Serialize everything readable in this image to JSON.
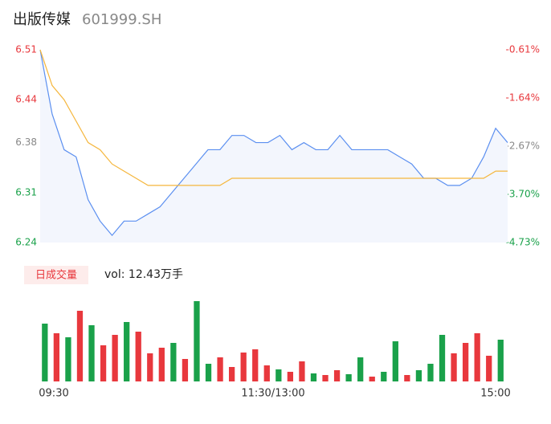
{
  "header": {
    "title": "出版传媒",
    "code": "601999.SH"
  },
  "chart_data": {
    "type": "line",
    "yticks": [
      {
        "value": 6.51,
        "label": "6.51"
      },
      {
        "value": 6.44,
        "label": "6.44"
      },
      {
        "value": 6.38,
        "label": "6.38"
      },
      {
        "value": 6.31,
        "label": "6.31"
      },
      {
        "value": 6.24,
        "label": "6.24"
      }
    ],
    "ylim": [
      6.24,
      6.51
    ],
    "y2ticks": [
      {
        "value": -0.61,
        "label": "-0.61%"
      },
      {
        "value": -1.64,
        "label": "-1.64%"
      },
      {
        "value": -2.67,
        "label": "-2.67%"
      },
      {
        "value": -3.7,
        "label": "-3.70%"
      },
      {
        "value": -4.73,
        "label": "-4.73%"
      }
    ],
    "y2lim": [
      -4.73,
      -0.61
    ],
    "tick_colors": [
      "#e8383d",
      "#e8383d",
      "#888888",
      "#1aa14a",
      "#1aa14a"
    ],
    "x_labels": [
      "09:30",
      "11:30/13:00",
      "15:00"
    ],
    "series": [
      {
        "name": "price",
        "color": "#5b8ff0",
        "values": [
          6.51,
          6.42,
          6.37,
          6.36,
          6.3,
          6.27,
          6.25,
          6.27,
          6.27,
          6.28,
          6.29,
          6.31,
          6.33,
          6.35,
          6.37,
          6.37,
          6.39,
          6.39,
          6.38,
          6.38,
          6.39,
          6.37,
          6.38,
          6.37,
          6.37,
          6.39,
          6.37,
          6.37,
          6.37,
          6.37,
          6.36,
          6.35,
          6.33,
          6.33,
          6.32,
          6.32,
          6.33,
          6.36,
          6.4,
          6.38
        ]
      },
      {
        "name": "average",
        "color": "#f5b63c",
        "values": [
          6.51,
          6.46,
          6.44,
          6.41,
          6.38,
          6.37,
          6.35,
          6.34,
          6.33,
          6.32,
          6.32,
          6.32,
          6.32,
          6.32,
          6.32,
          6.32,
          6.33,
          6.33,
          6.33,
          6.33,
          6.33,
          6.33,
          6.33,
          6.33,
          6.33,
          6.33,
          6.33,
          6.33,
          6.33,
          6.33,
          6.33,
          6.33,
          6.33,
          6.33,
          6.33,
          6.33,
          6.33,
          6.33,
          6.34,
          6.34
        ]
      }
    ],
    "volume": {
      "label": "日成交量",
      "text": "vol: 12.43万手",
      "ylim": [
        0,
        100
      ],
      "values": [
        72,
        60,
        55,
        88,
        70,
        45,
        58,
        74,
        62,
        35,
        42,
        48,
        28,
        100,
        22,
        30,
        18,
        36,
        40,
        20,
        15,
        12,
        25,
        10,
        8,
        14,
        9,
        30,
        6,
        12,
        50,
        8,
        14,
        22,
        58,
        35,
        48,
        60,
        32,
        52
      ],
      "colors": [
        "#1aa14a",
        "#e8383d",
        "#1aa14a",
        "#e8383d",
        "#1aa14a",
        "#e8383d",
        "#e8383d",
        "#1aa14a",
        "#e8383d",
        "#e8383d",
        "#e8383d",
        "#1aa14a",
        "#e8383d",
        "#1aa14a",
        "#1aa14a",
        "#e8383d",
        "#e8383d",
        "#e8383d",
        "#e8383d",
        "#e8383d",
        "#1aa14a",
        "#e8383d",
        "#e8383d",
        "#1aa14a",
        "#e8383d",
        "#e8383d",
        "#1aa14a",
        "#1aa14a",
        "#e8383d",
        "#1aa14a",
        "#1aa14a",
        "#e8383d",
        "#1aa14a",
        "#1aa14a",
        "#1aa14a",
        "#e8383d",
        "#e8383d",
        "#e8383d",
        "#e8383d",
        "#1aa14a"
      ]
    }
  }
}
